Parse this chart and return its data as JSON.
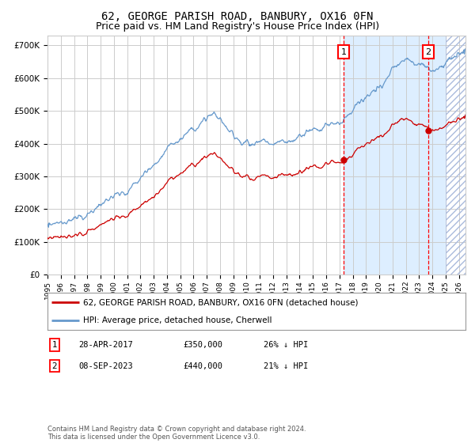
{
  "title": "62, GEORGE PARISH ROAD, BANBURY, OX16 0FN",
  "subtitle": "Price paid vs. HM Land Registry's House Price Index (HPI)",
  "ylabel_ticks": [
    "£0",
    "£100K",
    "£200K",
    "£300K",
    "£400K",
    "£500K",
    "£600K",
    "£700K"
  ],
  "ytick_values": [
    0,
    100000,
    200000,
    300000,
    400000,
    500000,
    600000,
    700000
  ],
  "ylim": [
    0,
    730000
  ],
  "xlim_start": 1995.0,
  "xlim_end": 2026.5,
  "shade_start": 2017.33,
  "hatch_start": 2025.0,
  "hatch_end": 2026.5,
  "marker1_x": 2017.33,
  "marker1_y": 350000,
  "marker1_label": "1",
  "marker1_date": "28-APR-2017",
  "marker1_price": "£350,000",
  "marker1_hpi": "26% ↓ HPI",
  "marker2_x": 2023.69,
  "marker2_y": 440000,
  "marker2_label": "2",
  "marker2_date": "08-SEP-2023",
  "marker2_price": "£440,000",
  "marker2_hpi": "21% ↓ HPI",
  "line1_color": "#cc0000",
  "line2_color": "#6699cc",
  "shade_color": "#ddeeff",
  "background_color": "#ffffff",
  "grid_color": "#cccccc",
  "legend1_label": "62, GEORGE PARISH ROAD, BANBURY, OX16 0FN (detached house)",
  "legend2_label": "HPI: Average price, detached house, Cherwell",
  "footer": "Contains HM Land Registry data © Crown copyright and database right 2024.\nThis data is licensed under the Open Government Licence v3.0.",
  "title_fontsize": 10,
  "subtitle_fontsize": 9
}
